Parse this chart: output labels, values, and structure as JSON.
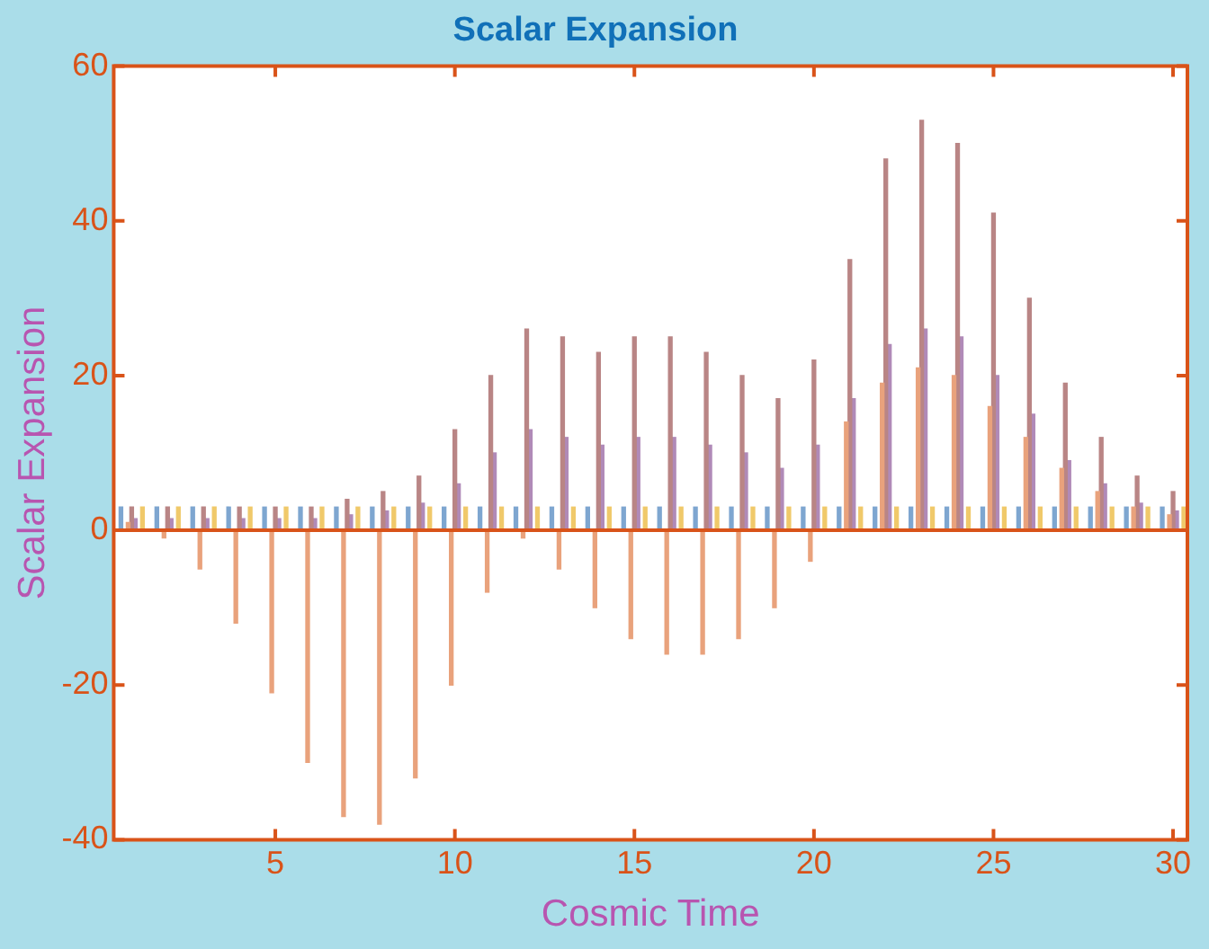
{
  "chart_data": {
    "type": "bar",
    "title": "Scalar Expansion",
    "xlabel": "Cosmic Time",
    "ylabel": "Scalar Expansion",
    "xlim": [
      0.5,
      30.4
    ],
    "xticks": [
      5,
      10,
      15,
      20,
      25,
      30
    ],
    "ylim": [
      -40,
      60
    ],
    "yticks": [
      -40,
      -20,
      0,
      20,
      40,
      60
    ],
    "ref_lines": [
      {
        "axis": "y",
        "value": 0,
        "color": "#d95319"
      }
    ],
    "series": [
      {
        "color": "#7ea6d0",
        "x": [
          0.7,
          1.7,
          2.7,
          3.7,
          4.7,
          5.7,
          6.7,
          7.7,
          8.7,
          9.7,
          10.7,
          11.7,
          12.7,
          13.7,
          14.7,
          15.7,
          16.7,
          17.7,
          18.7,
          19.7,
          20.7,
          21.7,
          22.7,
          23.7,
          24.7,
          25.7,
          26.7,
          27.7,
          28.7,
          29.7
        ],
        "values": [
          3,
          3,
          3,
          3,
          3,
          3,
          3,
          3,
          3,
          3,
          3,
          3,
          3,
          3,
          3,
          3,
          3,
          3,
          3,
          3,
          3,
          3,
          3,
          3,
          3,
          3,
          3,
          3,
          3,
          3
        ]
      },
      {
        "color": "#e9a27c",
        "x": [
          0.9,
          1.9,
          2.9,
          3.9,
          4.9,
          5.9,
          6.9,
          7.9,
          8.9,
          9.9,
          10.9,
          11.9,
          12.9,
          13.9,
          14.9,
          15.9,
          16.9,
          17.9,
          18.9,
          19.9,
          20.9,
          21.9,
          22.9,
          23.9,
          24.9,
          25.9,
          26.9,
          27.9,
          28.9,
          29.9
        ],
        "values": [
          1,
          -1,
          -5,
          -12,
          -21,
          -30,
          -37,
          -38,
          -32,
          -20,
          -8,
          -1,
          -5,
          -10,
          -14,
          -16,
          -16,
          -14,
          -10,
          -4,
          14,
          19,
          21,
          20,
          16,
          12,
          8,
          5,
          3,
          2
        ]
      },
      {
        "color": "#b98585",
        "x": [
          1,
          2,
          3,
          4,
          5,
          6,
          7,
          8,
          9,
          10,
          11,
          12,
          13,
          14,
          15,
          16,
          17,
          18,
          19,
          20,
          21,
          22,
          23,
          24,
          25,
          26,
          27,
          28,
          29,
          30
        ],
        "values": [
          3,
          3,
          3,
          3,
          3,
          3,
          4,
          5,
          7,
          13,
          20,
          26,
          25,
          23,
          25,
          25,
          23,
          20,
          17,
          22,
          35,
          48,
          53,
          50,
          41,
          30,
          19,
          12,
          7,
          5
        ]
      },
      {
        "color": "#b08ab8",
        "x": [
          1.1,
          2.1,
          3.1,
          4.1,
          5.1,
          6.1,
          7.1,
          8.1,
          9.1,
          10.1,
          11.1,
          12.1,
          13.1,
          14.1,
          15.1,
          16.1,
          17.1,
          18.1,
          19.1,
          20.1,
          21.1,
          22.1,
          23.1,
          24.1,
          25.1,
          26.1,
          27.1,
          28.1,
          29.1,
          30.1
        ],
        "values": [
          1.5,
          1.5,
          1.5,
          1.5,
          1.5,
          1.5,
          2,
          2.5,
          3.5,
          6,
          10,
          13,
          12,
          11,
          12,
          12,
          11,
          10,
          8,
          11,
          17,
          24,
          26,
          25,
          20,
          15,
          9,
          6,
          3.5,
          2.5
        ]
      },
      {
        "color": "#f0c96a",
        "x": [
          1.3,
          2.3,
          3.3,
          4.3,
          5.3,
          6.3,
          7.3,
          8.3,
          9.3,
          10.3,
          11.3,
          12.3,
          13.3,
          14.3,
          15.3,
          16.3,
          17.3,
          18.3,
          19.3,
          20.3,
          21.3,
          22.3,
          23.3,
          24.3,
          25.3,
          26.3,
          27.3,
          28.3,
          29.3,
          30.3
        ],
        "values": [
          3,
          3,
          3,
          3,
          3,
          3,
          3,
          3,
          3,
          3,
          3,
          3,
          3,
          3,
          3,
          3,
          3,
          3,
          3,
          3,
          3,
          3,
          3,
          3,
          3,
          3,
          3,
          3,
          3,
          3
        ]
      }
    ]
  }
}
